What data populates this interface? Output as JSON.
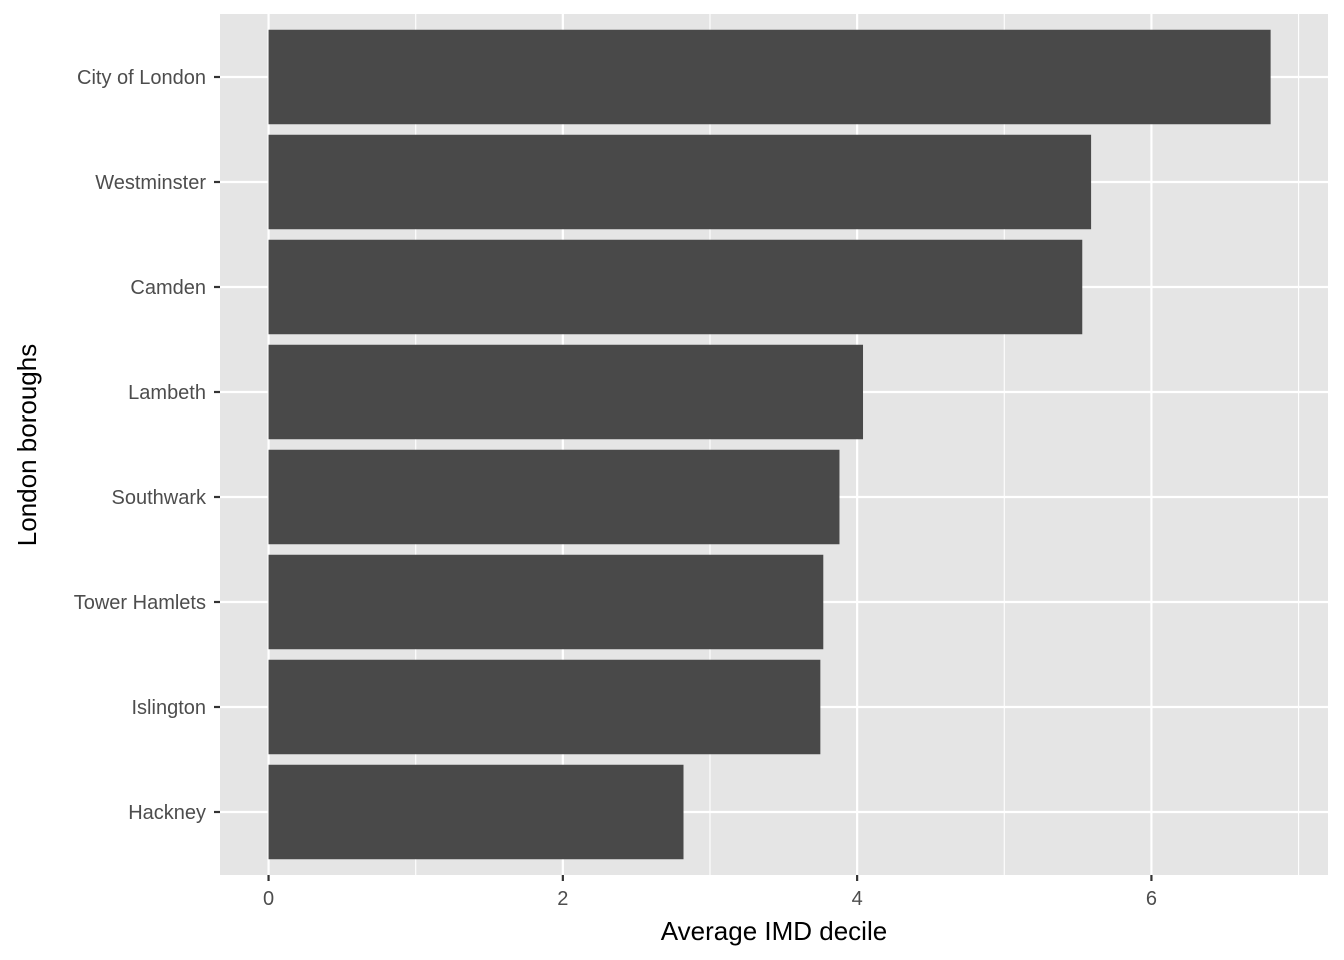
{
  "chart_data": {
    "type": "bar",
    "orientation": "horizontal",
    "categories": [
      "City of London",
      "Westminster",
      "Camden",
      "Lambeth",
      "Southwark",
      "Tower Hamlets",
      "Islington",
      "Hackney"
    ],
    "values": [
      6.81,
      5.59,
      5.53,
      4.04,
      3.88,
      3.77,
      3.75,
      2.82
    ],
    "xlabel": "Average IMD decile",
    "ylabel": "London boroughs",
    "xlim": [
      -0.33,
      7.2
    ],
    "xticks": [
      "0",
      "2",
      "4",
      "6"
    ],
    "grid": true,
    "colors": {
      "panel": "#e5e5e5",
      "bar": "#494949",
      "grid": "#ffffff",
      "tick_text": "#4d4d4d",
      "tick_mark": "#333333"
    }
  }
}
